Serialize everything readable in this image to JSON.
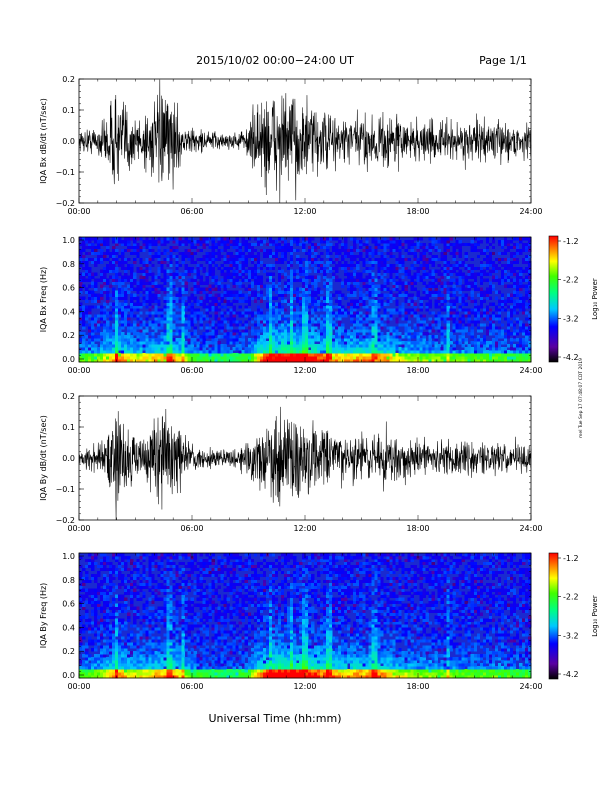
{
  "header": {
    "title": "2015/10/02  00:00−24:00 UT",
    "page": "Page 1/1"
  },
  "footer": {
    "xlabel": "Universal Time (hh:mm)",
    "side_stamp": "mel Tue Sep 17 07:48:07 CDT 2019"
  },
  "colorbar": {
    "label": "Log₁₀ Power",
    "ticks": [
      "-1.2",
      "-2.2",
      "-3.2",
      "-4.2"
    ]
  },
  "chart_data": [
    {
      "type": "line",
      "ylabel": "IQA Bx dB/dt (nT/sec)",
      "xlim": [
        0,
        24
      ],
      "ylim": [
        -0.2,
        0.2
      ],
      "x_ticks": [
        "00:00",
        "06:00",
        "12:00",
        "18:00",
        "24:00"
      ],
      "y_ticks": [
        "0.2",
        "0.1",
        "0.0",
        "−0.1",
        "−0.2"
      ],
      "series": [
        {
          "x": [
            0,
            1,
            1.5,
            2,
            2.5,
            3,
            4,
            4.5,
            5,
            5.5,
            6,
            7,
            8,
            8.5,
            9,
            9.5,
            10,
            10.5,
            11,
            11.5,
            12,
            12.5,
            13,
            14,
            15,
            16,
            17,
            18,
            19,
            20,
            21,
            22,
            23,
            24
          ],
          "amplitude": [
            0.04,
            0.06,
            0.12,
            0.2,
            0.16,
            0.1,
            0.15,
            0.2,
            0.17,
            0.06,
            0.05,
            0.04,
            0.03,
            0.04,
            0.06,
            0.18,
            0.2,
            0.2,
            0.2,
            0.19,
            0.16,
            0.14,
            0.12,
            0.1,
            0.1,
            0.12,
            0.1,
            0.08,
            0.08,
            0.08,
            0.08,
            0.08,
            0.07,
            0.07
          ]
        }
      ]
    },
    {
      "type": "heatmap",
      "ylabel": "IQA Bx Freq (Hz)",
      "xlim": [
        0,
        24
      ],
      "ylim": [
        0.0,
        1.0
      ],
      "x_ticks": [
        "00:00",
        "06:00",
        "12:00",
        "18:00",
        "24:00"
      ],
      "y_ticks": [
        "1.0",
        "0.8",
        "0.6",
        "0.4",
        "0.2",
        "0.0"
      ],
      "colorbar_range": [
        -4.2,
        -1.2
      ],
      "bright_hours": [
        2.0,
        4.8,
        5.5,
        10.2,
        11.3,
        12.0,
        13.3,
        15.7,
        19.6
      ],
      "activity": {
        "x": [
          0,
          1,
          2,
          3,
          4,
          5,
          6,
          7,
          8,
          9,
          10,
          11,
          12,
          13,
          14,
          15,
          16,
          17,
          18,
          19,
          20,
          21,
          22,
          23,
          24
        ],
        "level": [
          0.3,
          0.4,
          0.7,
          0.5,
          0.6,
          0.7,
          0.3,
          0.25,
          0.2,
          0.3,
          0.9,
          1.0,
          0.9,
          0.8,
          0.6,
          0.7,
          0.7,
          0.5,
          0.4,
          0.4,
          0.35,
          0.35,
          0.35,
          0.3,
          0.3
        ]
      }
    },
    {
      "type": "line",
      "ylabel": "IQA By dB/dt (nT/sec)",
      "xlim": [
        0,
        24
      ],
      "ylim": [
        -0.2,
        0.2
      ],
      "x_ticks": [
        "00:00",
        "06:00",
        "12:00",
        "18:00",
        "24:00"
      ],
      "y_ticks": [
        "0.2",
        "0.1",
        "0.0",
        "−0.1",
        "−0.2"
      ],
      "series": [
        {
          "x": [
            0,
            1,
            1.5,
            2,
            2.5,
            3,
            4,
            4.5,
            5,
            5.5,
            6,
            7,
            8,
            8.5,
            9,
            9.5,
            10,
            10.5,
            11,
            11.5,
            12,
            12.5,
            13,
            14,
            15,
            16,
            17,
            18,
            19,
            20,
            21,
            22,
            23,
            24
          ],
          "amplitude": [
            0.03,
            0.05,
            0.1,
            0.2,
            0.16,
            0.1,
            0.14,
            0.2,
            0.2,
            0.08,
            0.05,
            0.04,
            0.03,
            0.05,
            0.07,
            0.12,
            0.14,
            0.2,
            0.2,
            0.2,
            0.18,
            0.15,
            0.12,
            0.1,
            0.1,
            0.11,
            0.09,
            0.08,
            0.07,
            0.07,
            0.07,
            0.06,
            0.06,
            0.06
          ]
        }
      ]
    },
    {
      "type": "heatmap",
      "ylabel": "IQA By Freq (Hz)",
      "xlim": [
        0,
        24
      ],
      "ylim": [
        0.0,
        1.0
      ],
      "x_ticks": [
        "00:00",
        "06:00",
        "12:00",
        "18:00",
        "24:00"
      ],
      "y_ticks": [
        "1.0",
        "0.8",
        "0.6",
        "0.4",
        "0.2",
        "0.0"
      ],
      "colorbar_range": [
        -4.2,
        -1.2
      ],
      "bright_hours": [
        2.0,
        4.8,
        5.5,
        10.2,
        11.3,
        12.0,
        13.3,
        15.7,
        19.6
      ],
      "activity": {
        "x": [
          0,
          1,
          2,
          3,
          4,
          5,
          6,
          7,
          8,
          9,
          10,
          11,
          12,
          13,
          14,
          15,
          16,
          17,
          18,
          19,
          20,
          21,
          22,
          23,
          24
        ],
        "level": [
          0.3,
          0.4,
          0.7,
          0.5,
          0.6,
          0.7,
          0.3,
          0.25,
          0.2,
          0.3,
          0.9,
          1.0,
          0.9,
          0.8,
          0.6,
          0.7,
          0.7,
          0.5,
          0.4,
          0.4,
          0.35,
          0.35,
          0.35,
          0.3,
          0.3
        ]
      }
    }
  ]
}
